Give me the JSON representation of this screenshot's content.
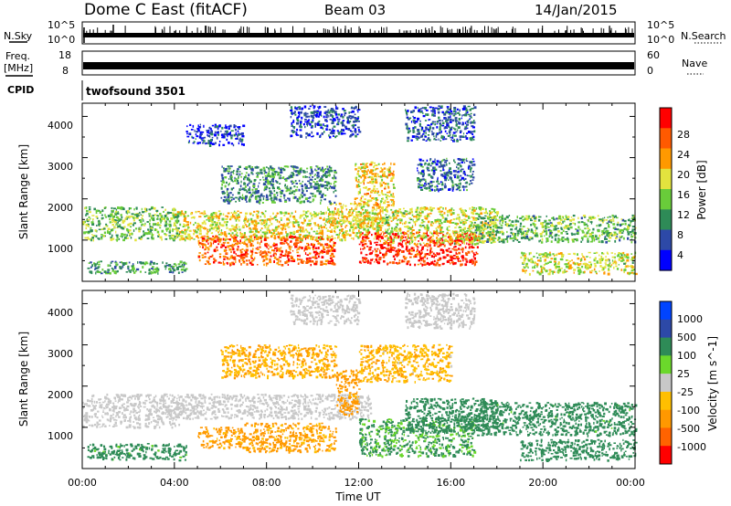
{
  "header": {
    "station": "Dome C East (fitACF)",
    "beam": "Beam 03",
    "date": "14/Jan/2015"
  },
  "info_panels": {
    "nsky_label": "N.Sky",
    "nsky_ticks": [
      "10^5",
      "10^0"
    ],
    "nsearch_label": "N.Search",
    "freq_label_1": "Freq.",
    "freq_label_2": "[MHz]",
    "freq_ticks": [
      "18",
      "8"
    ],
    "nave_label": "Nave",
    "nave_ticks": [
      "60",
      "0"
    ],
    "cpid_label": "CPID",
    "cpid_value": "twofsound 3501"
  },
  "axes": {
    "ylabel": "Slant Range [km]",
    "yticks": [
      "4000",
      "3000",
      "2000",
      "1000"
    ],
    "xticks": [
      "00:00",
      "04:00",
      "08:00",
      "12:00",
      "16:00",
      "20:00",
      "00:00"
    ],
    "xlabel": "Time UT"
  },
  "colors": {
    "power": [
      "#0000ff",
      "#2d49a7",
      "#2e8b57",
      "#69cc3a",
      "#e3e33e",
      "#ff9900",
      "#ff5a00",
      "#ff0000"
    ],
    "velocity": [
      "#ff0000",
      "#ff6300",
      "#ff9800",
      "#ffbf00",
      "#c8c8c8",
      "#6bd82b",
      "#2e8b57",
      "#2d49a7",
      "#0044ff"
    ]
  },
  "chart_data": [
    {
      "type": "heatmap",
      "panel": "power",
      "x_range_hours": [
        0,
        24
      ],
      "y_range_km": [
        180,
        4500
      ],
      "colorbar": {
        "label": "Power [dB]",
        "ticks": [
          "28",
          "24",
          "20",
          "16",
          "12",
          "8",
          "4"
        ],
        "range": [
          0,
          30
        ]
      },
      "regions": [
        {
          "t": [
            0,
            4.2
          ],
          "r": [
            1200,
            2000
          ],
          "v": 13
        },
        {
          "t": [
            0.2,
            4.5
          ],
          "r": [
            380,
            680
          ],
          "v": 10
        },
        {
          "t": [
            4,
            13
          ],
          "r": [
            1200,
            1900
          ],
          "v": 17
        },
        {
          "t": [
            5,
            11
          ],
          "r": [
            600,
            1300
          ],
          "v": 24
        },
        {
          "t": [
            10.5,
            13
          ],
          "r": [
            1500,
            2100
          ],
          "v": 18
        },
        {
          "t": [
            11.8,
            13.5
          ],
          "r": [
            2000,
            3100
          ],
          "v": 18
        },
        {
          "t": [
            12,
            17.2
          ],
          "r": [
            600,
            1400
          ],
          "v": 27
        },
        {
          "t": [
            13,
            18
          ],
          "r": [
            1100,
            2000
          ],
          "v": 16
        },
        {
          "t": [
            17,
            24
          ],
          "r": [
            1150,
            1800
          ],
          "v": 12
        },
        {
          "t": [
            19,
            24
          ],
          "r": [
            380,
            900
          ],
          "v": 16
        },
        {
          "t": [
            9,
            12
          ],
          "r": [
            3700,
            4450
          ],
          "v": 5
        },
        {
          "t": [
            4.5,
            7
          ],
          "r": [
            3500,
            4000
          ],
          "v": 4
        },
        {
          "t": [
            14,
            17
          ],
          "r": [
            3600,
            4450
          ],
          "v": 6
        },
        {
          "t": [
            6,
            11
          ],
          "r": [
            2100,
            3000
          ],
          "v": 9
        },
        {
          "t": [
            14.5,
            17
          ],
          "r": [
            2400,
            3200
          ],
          "v": 7
        }
      ]
    },
    {
      "type": "heatmap",
      "panel": "velocity",
      "x_range_hours": [
        0,
        24
      ],
      "y_range_km": [
        180,
        4500
      ],
      "colorbar": {
        "label": "Velocity [m s^-1]",
        "ticks": [
          "1000",
          "500",
          "100",
          "25",
          "-25",
          "-100",
          "-500",
          "-1000"
        ],
        "range": [
          -1200,
          1200
        ]
      },
      "regions": [
        {
          "t": [
            0.2,
            4.5
          ],
          "r": [
            400,
            800
          ],
          "v": 200
        },
        {
          "t": [
            0,
            4.2
          ],
          "r": [
            1200,
            2000
          ],
          "v": 0
        },
        {
          "t": [
            4,
            12.5
          ],
          "r": [
            1400,
            2000
          ],
          "v": 0
        },
        {
          "t": [
            5,
            7
          ],
          "r": [
            700,
            1200
          ],
          "v": -150
        },
        {
          "t": [
            7,
            11
          ],
          "r": [
            600,
            1300
          ],
          "v": -150
        },
        {
          "t": [
            11,
            12
          ],
          "r": [
            1500,
            2600
          ],
          "v": -200
        },
        {
          "t": [
            12,
            17
          ],
          "r": [
            500,
            1400
          ],
          "v": 120
        },
        {
          "t": [
            12,
            16
          ],
          "r": [
            2300,
            3200
          ],
          "v": -80
        },
        {
          "t": [
            14,
            18
          ],
          "r": [
            1100,
            1900
          ],
          "v": 300
        },
        {
          "t": [
            17,
            24
          ],
          "r": [
            1000,
            1800
          ],
          "v": 250
        },
        {
          "t": [
            19,
            24
          ],
          "r": [
            400,
            900
          ],
          "v": 300
        },
        {
          "t": [
            9,
            12
          ],
          "r": [
            3700,
            4400
          ],
          "v": 0
        },
        {
          "t": [
            14,
            17
          ],
          "r": [
            3600,
            4450
          ],
          "v": 0
        },
        {
          "t": [
            6,
            11
          ],
          "r": [
            2400,
            3200
          ],
          "v": -100
        }
      ]
    }
  ]
}
